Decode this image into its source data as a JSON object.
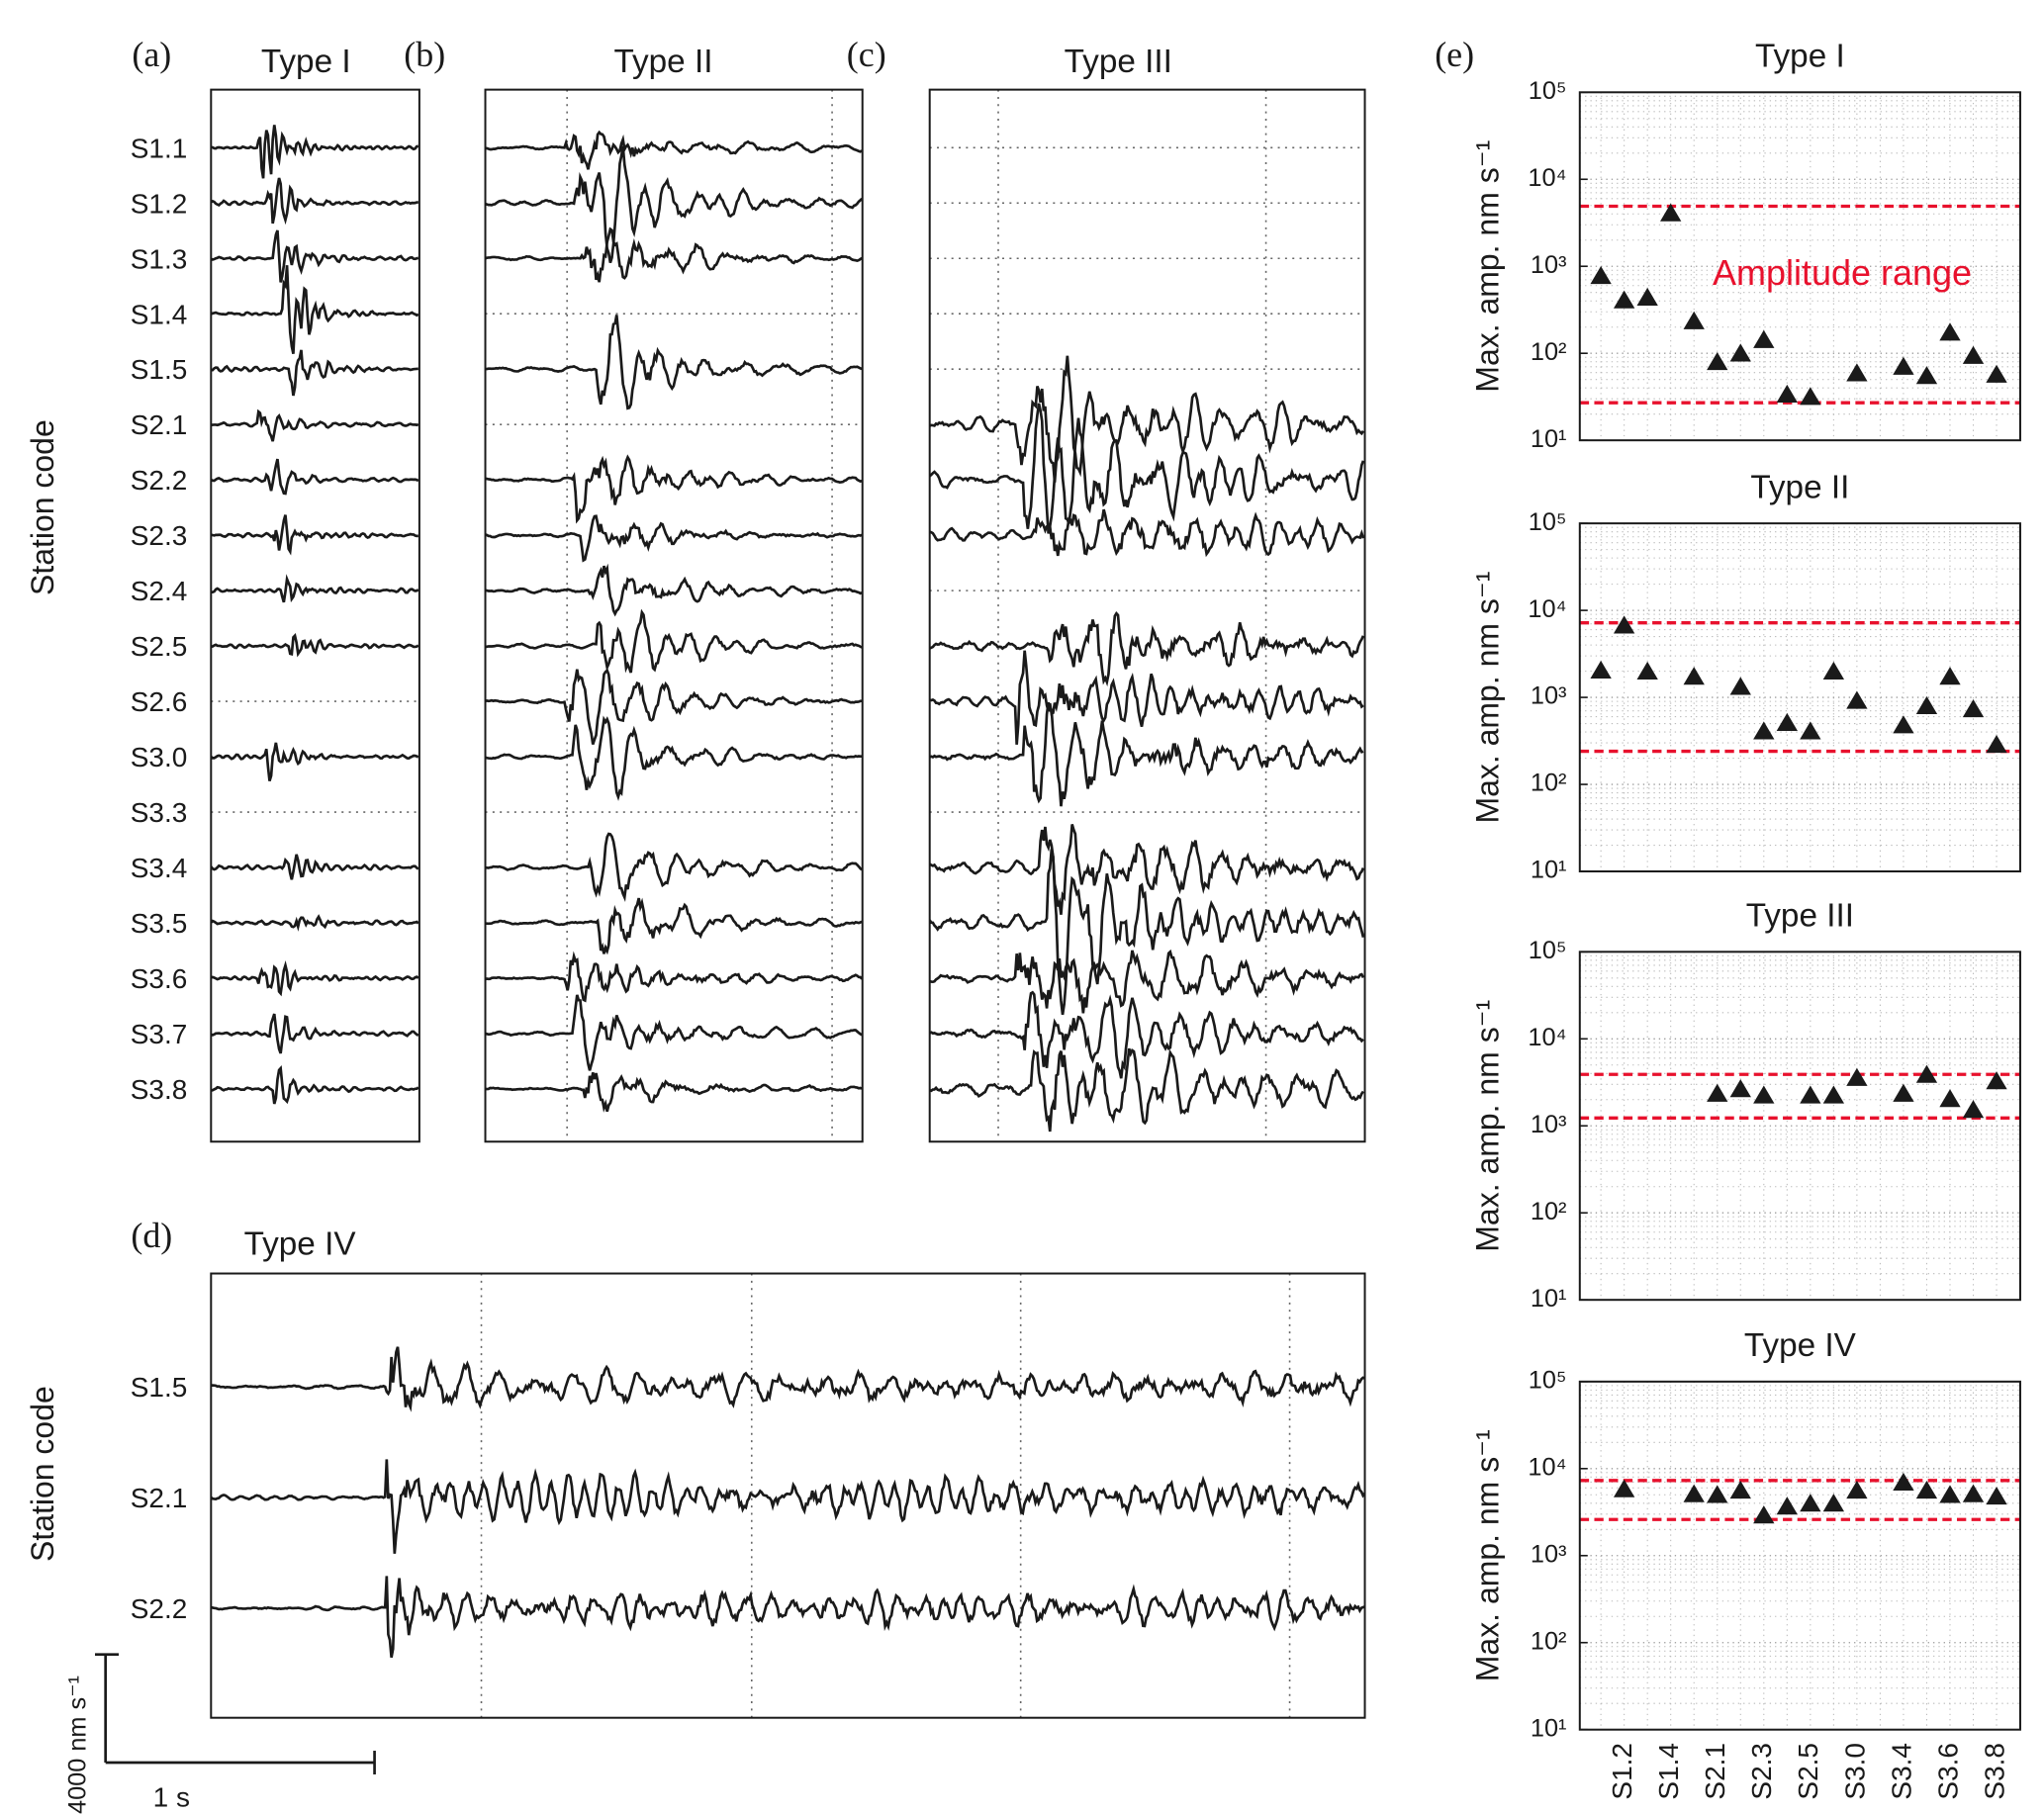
{
  "waveform_panels": [
    {
      "label": "(a)",
      "title": "Type I",
      "stations": [
        "S1.1",
        "S1.2",
        "S1.3",
        "S1.4",
        "S1.5",
        "S2.1",
        "S2.2",
        "S2.3",
        "S2.4",
        "S2.5",
        "S2.6",
        "S3.0",
        "S3.3",
        "S3.4",
        "S3.5",
        "S3.6",
        "S3.7",
        "S3.8"
      ]
    },
    {
      "label": "(b)",
      "title": "Type II"
    },
    {
      "label": "(c)",
      "title": "Type III"
    },
    {
      "label": "(d)",
      "title": "Type IV",
      "stations": [
        "S1.5",
        "S2.1",
        "S2.2"
      ]
    }
  ],
  "station_axis_label": "Station code",
  "scale_bar": {
    "amplitude": "4000 nm s⁻¹",
    "time": "1 s"
  },
  "panel_e_label": "(e)",
  "chart_data": [
    {
      "type": "scatter",
      "title": "Type I",
      "ylabel": "Max. amp. nm s⁻¹",
      "log_scale": true,
      "grid": true,
      "marker": "triangle",
      "color": "#1a1a1a",
      "ylim": [
        10,
        100000
      ],
      "yticks": [
        {
          "value": 10,
          "label": "10¹"
        },
        {
          "value": 100,
          "label": "10²"
        },
        {
          "value": 1000,
          "label": "10³"
        },
        {
          "value": 10000,
          "label": "10⁴"
        },
        {
          "value": 100000,
          "label": "10⁵"
        }
      ],
      "values": [
        760,
        400,
        430,
        4000,
        230,
        78,
        98,
        140,
        33,
        31,
        null,
        58,
        null,
        69,
        54,
        170,
        92,
        56
      ],
      "reference_lines": [
        4900,
        27
      ],
      "reference_color": "#e8112d",
      "annotation": "Amplitude range"
    },
    {
      "type": "scatter",
      "title": "Type II",
      "ylabel": "Max. amp. nm s⁻¹",
      "log_scale": true,
      "grid": true,
      "marker": "triangle",
      "color": "#1a1a1a",
      "ylim": [
        10,
        100000
      ],
      "yticks": [
        {
          "value": 10,
          "label": "10¹"
        },
        {
          "value": 100,
          "label": "10²"
        },
        {
          "value": 1000,
          "label": "10³"
        },
        {
          "value": 10000,
          "label": "10⁴"
        },
        {
          "value": 100000,
          "label": "10⁵"
        }
      ],
      "values": [
        2000,
        6600,
        1950,
        null,
        1700,
        null,
        1300,
        400,
        500,
        400,
        1950,
        900,
        null,
        470,
        780,
        1700,
        720,
        280
      ],
      "reference_lines": [
        7200,
        240
      ],
      "reference_color": "#e8112d"
    },
    {
      "type": "scatter",
      "title": "Type III",
      "ylabel": "Max. amp. nm s⁻¹",
      "log_scale": true,
      "grid": true,
      "marker": "triangle",
      "color": "#1a1a1a",
      "ylim": [
        10,
        100000
      ],
      "yticks": [
        {
          "value": 10,
          "label": "10¹"
        },
        {
          "value": 100,
          "label": "10²"
        },
        {
          "value": 1000,
          "label": "10³"
        },
        {
          "value": 10000,
          "label": "10⁴"
        },
        {
          "value": 100000,
          "label": "10⁵"
        }
      ],
      "values": [
        null,
        null,
        null,
        null,
        null,
        2300,
        2600,
        2200,
        null,
        2200,
        2200,
        3500,
        null,
        2300,
        3800,
        2000,
        1500,
        3200
      ],
      "reference_lines": [
        3900,
        1230
      ],
      "reference_color": "#e8112d"
    },
    {
      "type": "scatter",
      "title": "Type IV",
      "ylabel": "Max. amp. nm s⁻¹",
      "log_scale": true,
      "grid": true,
      "marker": "triangle",
      "color": "#1a1a1a",
      "ylim": [
        10,
        100000
      ],
      "yticks": [
        {
          "value": 10,
          "label": "10¹"
        },
        {
          "value": 100,
          "label": "10²"
        },
        {
          "value": 1000,
          "label": "10³"
        },
        {
          "value": 10000,
          "label": "10⁴"
        },
        {
          "value": 100000,
          "label": "10⁵"
        }
      ],
      "categories": [
        null,
        "S1.2",
        null,
        "S1.4",
        null,
        "S2.1",
        null,
        "S2.3",
        null,
        "S2.5",
        null,
        "S3.0",
        null,
        "S3.4",
        null,
        "S3.6",
        null,
        "S3.8"
      ],
      "values": [
        null,
        5700,
        null,
        null,
        5000,
        4900,
        5500,
        2850,
        3600,
        3900,
        3900,
        5500,
        null,
        6800,
        5500,
        4900,
        5000,
        4700
      ],
      "reference_lines": [
        7300,
        2600
      ],
      "reference_color": "#e8112d"
    }
  ]
}
